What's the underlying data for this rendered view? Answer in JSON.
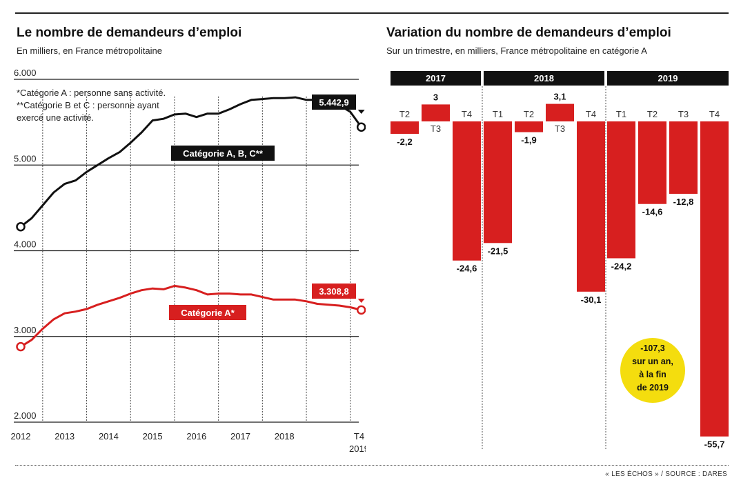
{
  "left": {
    "title": "Le nombre de demandeurs d’emploi",
    "subtitle": "En milliers, en France métropolitaine",
    "footnote_a": "*Catégorie A : personne sans activité.",
    "footnote_bc_1": "**Catégorie B et C : personne ayant",
    "footnote_bc_2": "exercé une activité.",
    "end_label_abc": "5.442,9",
    "end_label_a": "3.308,8",
    "series_label_abc": "Catégorie A, B, C**",
    "series_label_a": "Catégorie A*"
  },
  "right": {
    "title": "Variation du nombre de demandeurs d’emploi",
    "subtitle": "Sur un trimestre, en milliers, France métropolitaine en catégorie A",
    "callout": [
      "-107,3",
      "sur un an,",
      "à la fin",
      "de 2019"
    ]
  },
  "source": "« LES ÉCHOS » / SOURCE : DARES",
  "colors": {
    "red": "#d71f1f",
    "black": "#111111",
    "yellow": "#f4dd0e",
    "grid": "#1a1a1a"
  },
  "chart_data": [
    {
      "type": "line",
      "title": "Le nombre de demandeurs d’emploi",
      "subtitle": "En milliers, en France métropolitaine",
      "ylim": [
        2000,
        6000
      ],
      "y_ticks": [
        2000,
        3000,
        4000,
        5000,
        6000
      ],
      "y_tick_labels": [
        "2.000",
        "3.000",
        "4.000",
        "5.000",
        "6.000"
      ],
      "x_range": [
        2011.9,
        2020.0
      ],
      "x_ticks": [
        2012,
        2013,
        2014,
        2015,
        2016,
        2017,
        2018,
        2019.7
      ],
      "x_tick_labels": [
        "2012",
        "2013",
        "2014",
        "2015",
        "2016",
        "2017",
        "2018",
        "T4"
      ],
      "x_tick_sublabels": [
        "",
        "",
        "",
        "",
        "",
        "",
        "",
        "2019"
      ],
      "grid_x": [
        2012.5,
        2013.5,
        2014.5,
        2015.5,
        2016.5,
        2017.5,
        2018.5,
        2019.5
      ],
      "series": [
        {
          "name": "Catégorie A, B, C**",
          "color": "#111111",
          "x": [
            2012,
            2012.25,
            2012.5,
            2012.75,
            2013,
            2013.25,
            2013.5,
            2013.75,
            2014,
            2014.25,
            2014.5,
            2014.75,
            2015,
            2015.25,
            2015.5,
            2015.75,
            2016,
            2016.25,
            2016.5,
            2016.75,
            2017,
            2017.25,
            2017.5,
            2017.75,
            2018,
            2018.25,
            2018.5,
            2018.75,
            2019,
            2019.25,
            2019.5,
            2019.75
          ],
          "y": [
            4280,
            4380,
            4530,
            4680,
            4780,
            4820,
            4920,
            5000,
            5080,
            5150,
            5260,
            5380,
            5520,
            5540,
            5590,
            5600,
            5560,
            5600,
            5600,
            5650,
            5710,
            5760,
            5770,
            5780,
            5780,
            5790,
            5760,
            5760,
            5740,
            5700,
            5620,
            5443
          ]
        },
        {
          "name": "Catégorie A*",
          "color": "#d71f1f",
          "x": [
            2012,
            2012.25,
            2012.5,
            2012.75,
            2013,
            2013.25,
            2013.5,
            2013.75,
            2014,
            2014.25,
            2014.5,
            2014.75,
            2015,
            2015.25,
            2015.5,
            2015.75,
            2016,
            2016.25,
            2016.5,
            2016.75,
            2017,
            2017.25,
            2017.5,
            2017.75,
            2018,
            2018.25,
            2018.5,
            2018.75,
            2019,
            2019.25,
            2019.5,
            2019.75
          ],
          "y": [
            2880,
            2960,
            3090,
            3200,
            3270,
            3290,
            3320,
            3370,
            3410,
            3450,
            3500,
            3540,
            3560,
            3550,
            3590,
            3570,
            3540,
            3490,
            3500,
            3500,
            3490,
            3490,
            3460,
            3430,
            3430,
            3430,
            3410,
            3380,
            3370,
            3360,
            3340,
            3309
          ]
        }
      ]
    },
    {
      "type": "bar",
      "title": "Variation du nombre de demandeurs d’emploi",
      "subtitle": "Sur un trimestre, en milliers, France métropolitaine en catégorie A",
      "groups": [
        {
          "label": "2017",
          "categories": [
            "T2",
            "T3",
            "T4"
          ],
          "values": [
            -2.2,
            3,
            -24.6
          ],
          "value_labels": [
            "-2,2",
            "3",
            "-24,6"
          ]
        },
        {
          "label": "2018",
          "categories": [
            "T1",
            "T2",
            "T3",
            "T4"
          ],
          "values": [
            -21.5,
            -1.9,
            3.1,
            -30.1
          ],
          "value_labels": [
            "-21,5",
            "-1,9",
            "3,1",
            "-30,1"
          ]
        },
        {
          "label": "2019",
          "categories": [
            "T1",
            "T2",
            "T3",
            "T4"
          ],
          "values": [
            -24.2,
            -14.6,
            -12.8,
            -55.7
          ],
          "value_labels": [
            "-24,2",
            "-14,6",
            "-12,8",
            "-55,7"
          ]
        }
      ],
      "color": "#d71f1f"
    }
  ]
}
